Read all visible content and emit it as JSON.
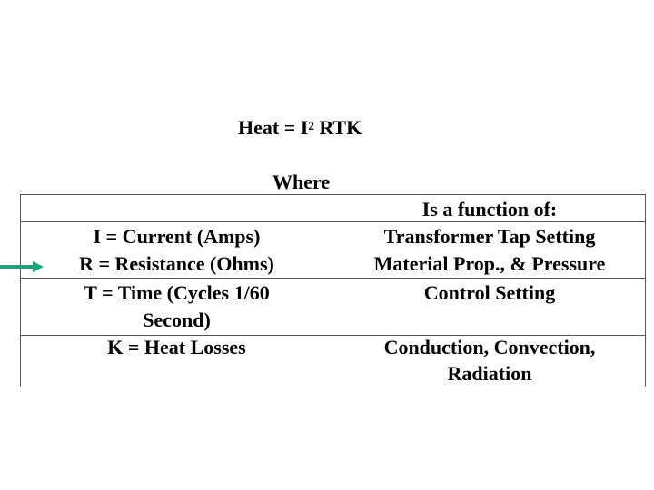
{
  "formula": {
    "prefix": "Heat = I",
    "exponent": "2",
    "suffix": " RTK"
  },
  "where": "Where",
  "header_right": "Is a function of:",
  "rows": [
    {
      "left": [
        "I = Current (Amps)",
        "R = Resistance (Ohms)",
        "T = Time (Cycles 1/60",
        "Second)"
      ],
      "right": [
        "Transformer Tap Setting",
        "Material Prop., & Pressure",
        "Control Setting"
      ]
    },
    {
      "left": [
        "K = Heat Losses"
      ],
      "right": [
        "Conduction, Convection,",
        "Radiation"
      ]
    }
  ],
  "colors": {
    "arrow": "#1aa37a",
    "rule": "#555555"
  },
  "icons": {
    "pointer": "arrow-right-icon"
  }
}
